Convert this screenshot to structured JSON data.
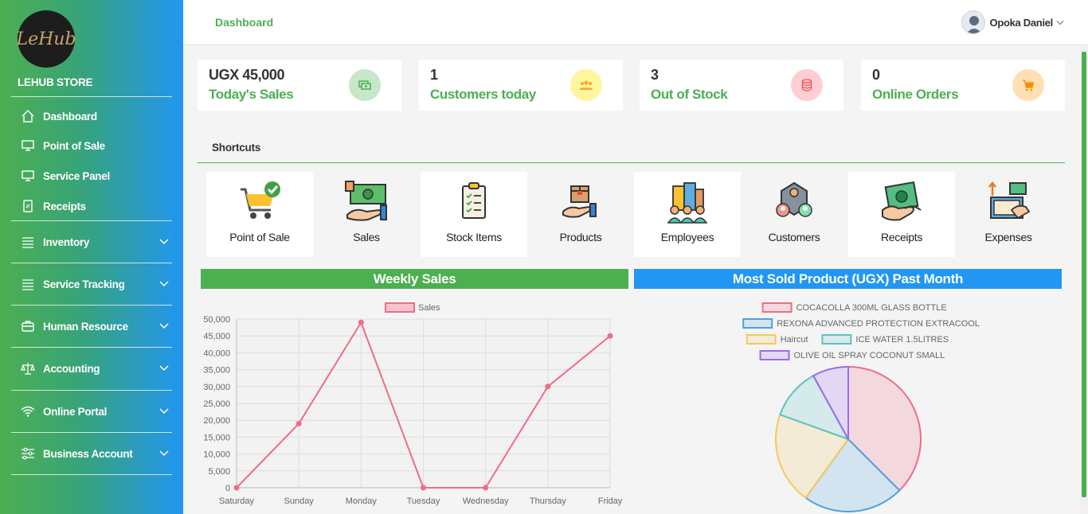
{
  "sidebar": {
    "logo_text": "LeHub",
    "store_name": "LEHUB STORE",
    "items": [
      {
        "label": "Dashboard",
        "icon": "home-icon"
      },
      {
        "label": "Point of Sale",
        "icon": "monitor-icon"
      },
      {
        "label": "Service Panel",
        "icon": "monitor-icon"
      },
      {
        "label": "Receipts",
        "icon": "receipt-icon"
      },
      {
        "label": "Inventory",
        "icon": "list-icon"
      },
      {
        "label": "Service Tracking",
        "icon": "list-icon"
      },
      {
        "label": "Human Resource",
        "icon": "briefcase-icon"
      },
      {
        "label": "Accounting",
        "icon": "scale-icon"
      },
      {
        "label": "Online Portal",
        "icon": "wifi-icon"
      },
      {
        "label": "Business Account",
        "icon": "sliders-icon"
      }
    ]
  },
  "header": {
    "title": "Dashboard",
    "user_name": "Opoka Daniel"
  },
  "stats": [
    {
      "value": "UGX 45,000",
      "label": "Today's Sales",
      "icon": "money-icon",
      "color": "#c8e6c9",
      "icon_color": "#4caf50"
    },
    {
      "value": "1",
      "label": "Customers today",
      "icon": "users-icon",
      "color": "#fff59d",
      "icon_color": "#f9a825"
    },
    {
      "value": "3",
      "label": "Out of Stock",
      "icon": "database-icon",
      "color": "#ffcdd2",
      "icon_color": "#ef5350"
    },
    {
      "value": "0",
      "label": "Online Orders",
      "icon": "cart-icon",
      "color": "#ffe0b2",
      "icon_color": "#fb8c00"
    }
  ],
  "shortcuts": {
    "title": "Shortcuts",
    "items": [
      {
        "label": "Point of Sale",
        "icon": "cart-check-icon"
      },
      {
        "label": "Sales",
        "icon": "cash-hand-icon"
      },
      {
        "label": "Stock Items",
        "icon": "clipboard-icon"
      },
      {
        "label": "Products",
        "icon": "box-hand-icon"
      },
      {
        "label": "Employees",
        "icon": "office-people-icon"
      },
      {
        "label": "Customers",
        "icon": "customers-network-icon"
      },
      {
        "label": "Receipts",
        "icon": "receipt-money-icon"
      },
      {
        "label": "Expenses",
        "icon": "expenses-icon"
      }
    ]
  },
  "weekly": {
    "title": "Weekly Sales",
    "color": "#4caf50"
  },
  "most_sold": {
    "title": "Most Sold Product (UGX) Past Month",
    "color": "#2196f3"
  },
  "chart_data": [
    {
      "type": "line",
      "title": "Weekly Sales",
      "categories": [
        "Saturday",
        "Sunday",
        "Monday",
        "Tuesday",
        "Wednesday",
        "Thursday",
        "Friday"
      ],
      "series": [
        {
          "name": "Sales",
          "values": [
            0,
            19000,
            49000,
            0,
            0,
            30000,
            45000
          ],
          "color": "#f06c85"
        }
      ],
      "ylim": [
        0,
        50000
      ],
      "yticks": [
        "50,000",
        "45,000",
        "40,000",
        "35,000",
        "30,000",
        "25,000",
        "20,000",
        "15,000",
        "10,000",
        "5,000",
        "0"
      ],
      "grid": true,
      "legend": "top"
    },
    {
      "type": "pie",
      "title": "Most Sold Product (UGX) Past Month",
      "labels": [
        "COCACOLLA 300ML GLASS BOTTLE",
        "REXONA ADVANCED PROTECTION EXTRACOOL",
        "Haircut",
        "ICE WATER 1.5LITRES",
        "OLIVE OIL SPRAY COCONUT SMALL"
      ],
      "values": [
        37.5,
        22.5,
        20.5,
        11.5,
        8.0
      ],
      "colors": [
        "#f06c85",
        "#4aa3df",
        "#f5c95e",
        "#5cc3c3",
        "#9b6bf0"
      ],
      "legend": "top"
    }
  ]
}
